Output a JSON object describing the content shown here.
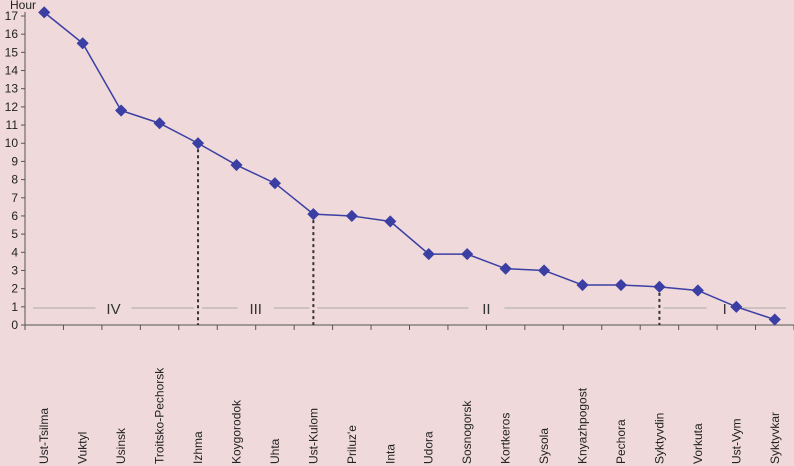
{
  "chart_data": {
    "type": "line",
    "ylabel": "Hour",
    "ylim": [
      0,
      17
    ],
    "yticks": [
      0,
      1,
      2,
      3,
      4,
      5,
      6,
      7,
      8,
      9,
      10,
      11,
      12,
      13,
      14,
      15,
      16,
      17
    ],
    "grid": false,
    "legend": "none",
    "categories": [
      "Ust-Tsilma",
      "Vuktyl",
      "Usinsk",
      "Troitsko-Pechorsk",
      "Izhma",
      "Koygorodok",
      "Uhta",
      "Ust-Kulom",
      "Priluz'e",
      "Inta",
      "Udora",
      "Sosnogorsk",
      "Kortkeros",
      "Sysola",
      "Knyazhpogost",
      "Pechora",
      "Syktyvdin",
      "Vorkuta",
      "Ust-Vym",
      "Syktyvkar"
    ],
    "series": [
      {
        "values": [
          17.2,
          15.5,
          11.8,
          11.1,
          10.0,
          8.8,
          7.8,
          6.1,
          6.0,
          5.7,
          3.9,
          3.9,
          3.1,
          3.0,
          2.2,
          2.2,
          2.1,
          1.9,
          1.0,
          0.3
        ],
        "color": "#3b3fa3"
      }
    ],
    "zones": [
      {
        "label": "IV",
        "from_index": -0.5,
        "to_index": 4
      },
      {
        "label": "III",
        "from_index": 4,
        "to_index": 7
      },
      {
        "label": "II",
        "from_index": 7,
        "to_index": 16
      },
      {
        "label": "I",
        "from_index": 16,
        "to_index": 19.5
      }
    ],
    "dividers_at_index": [
      4,
      7,
      16
    ]
  },
  "colors": {
    "background": "#efd9db",
    "series": "#3b3fa3",
    "axis": "#555555",
    "divider": "#333333",
    "zone_line": "#aaaaaa"
  }
}
